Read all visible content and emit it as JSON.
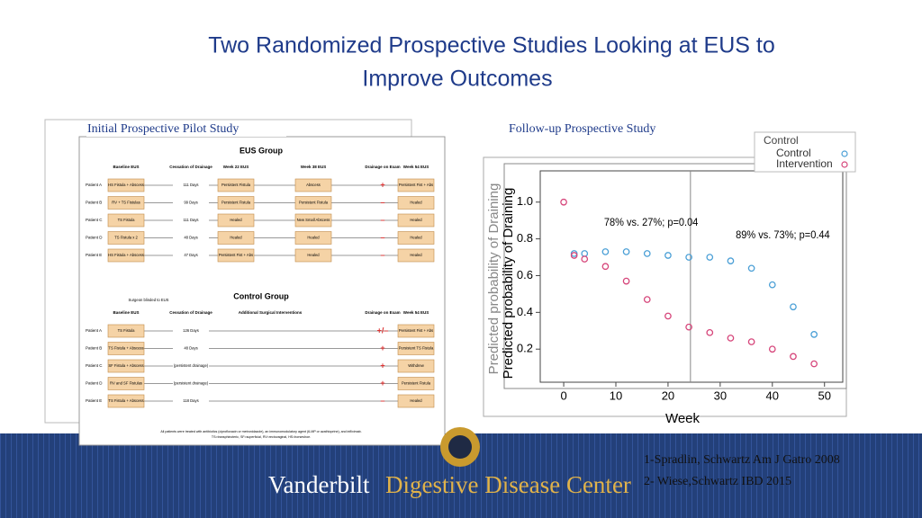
{
  "slide": {
    "title_line1": "Two Randomized Prospective Studies Looking at EUS to",
    "title_line2": "Improve Outcomes",
    "left_caption": "Initial Prospective Pilot Study",
    "right_caption": "Follow-up Prospective Study",
    "eus_group": {
      "title": "EUS Group",
      "headers": [
        "Baseline EUS",
        "Cessation of Drainage",
        "Week 22 EUS",
        "Week 38 EUS",
        "Drainage on Exam",
        "Week 54 EUS"
      ],
      "rows": [
        {
          "patient": "Patient A",
          "cells": [
            "HS Fistula + Abscess",
            "111 Days",
            "Persistent Fistula",
            "Abscess",
            "+",
            "Persistent Fist + Abs"
          ]
        },
        {
          "patient": "Patient B",
          "cells": [
            "RV + TS Fistulas",
            "99 Days",
            "Persistent Fistula",
            "Persistent Fistula",
            "–",
            "Healed"
          ]
        },
        {
          "patient": "Patient C",
          "cells": [
            "TS Fistula",
            "111 Days",
            "Healed",
            "New Small Abscess",
            "–",
            "Healed"
          ]
        },
        {
          "patient": "Patient D",
          "cells": [
            "TS Fistula x 2",
            "48 Days",
            "Healed",
            "Healed",
            "–",
            "Healed"
          ]
        },
        {
          "patient": "Patient E",
          "cells": [
            "HS Fistula + Abscess",
            "47 Days",
            "Persistent Fist + Abs",
            "Healed",
            "–",
            "Healed"
          ]
        }
      ]
    },
    "control_group": {
      "title": "Control Group",
      "note": "Surgeon blinded to EUS",
      "headers": [
        "Baseline EUS",
        "Cessation of Drainage",
        "Additional Surgical Interventions",
        "Drainage on Exam",
        "Week 54 EUS"
      ],
      "rows": [
        {
          "patient": "Patient A",
          "cells": [
            "TS Fistula",
            "126 Days",
            null,
            "+/–",
            "Persistent Fist + Abs"
          ]
        },
        {
          "patient": "Patient B",
          "cells": [
            "TS Fistula + Abscess",
            "48 Days",
            null,
            "+",
            "Persistent TS Fistula"
          ]
        },
        {
          "patient": "Patient C",
          "cells": [
            "SF Fistula + Abscess",
            "(persistent drainage)",
            null,
            "+",
            "Withdrew"
          ]
        },
        {
          "patient": "Patient D",
          "cells": [
            "RV and SF Fistulas",
            "(persistent drainage)",
            null,
            "+",
            "Persistent Fistula"
          ]
        },
        {
          "patient": "Patient E",
          "cells": [
            "TS Fistula + Abscess",
            "118 Days",
            null,
            "–",
            "Healed"
          ]
        }
      ],
      "footnote1": "All patients were treated with antibiotics (ciprofloxacin or metronidazole), an immunomodulatory agent (6-MP or azathioprine), and infliximab.",
      "footnote2": "TS=transphincteric, SF=superficial, RV=rectovaginal, HS=horseshoe."
    },
    "chart": {
      "type": "scatter",
      "x_label": "Week",
      "y_label": "Predicted probability of Draining",
      "annotations": [
        "78% vs. 27%; p=0.04",
        "89% vs. 73%; p=0.44"
      ],
      "divider_x": 24.3,
      "xlim": [
        -4.5,
        53.5
      ],
      "ylim": [
        0.02,
        1.17
      ],
      "xticks": [
        0,
        10,
        20,
        30,
        40,
        50
      ],
      "yticks": [
        {
          "value": 0.2,
          "label": "0.2"
        },
        {
          "value": 0.4,
          "label": "0.4"
        },
        {
          "value": 0.6,
          "label": "0.6"
        },
        {
          "value": 0.8,
          "label": "0.8"
        },
        {
          "value": 1.0,
          "label": "1.0"
        }
      ],
      "legend_title": "Control",
      "series": [
        {
          "name": "Control",
          "color": "#4a9fd6",
          "x": [
            2,
            4,
            8,
            12,
            16,
            20,
            24,
            28,
            32,
            36,
            40,
            44,
            48
          ],
          "values": [
            0.72,
            0.72,
            0.73,
            0.73,
            0.72,
            0.71,
            0.7,
            0.7,
            0.68,
            0.64,
            0.55,
            0.43,
            0.28
          ]
        },
        {
          "name": "Intervention",
          "color": "#d6457a",
          "x": [
            0,
            2,
            4,
            8,
            12,
            16,
            20,
            24,
            28,
            32,
            36,
            40,
            44,
            48
          ],
          "values": [
            1.0,
            0.71,
            0.69,
            0.65,
            0.57,
            0.47,
            0.38,
            0.32,
            0.29,
            0.26,
            0.24,
            0.2,
            0.16,
            0.12
          ]
        }
      ]
    },
    "references": [
      "1-Spradlin, Schwartz Am J Gatro 2008",
      "2- Wiese,Schwartz IBD 2015"
    ],
    "logo": {
      "word1": "Vanderbilt",
      "word2": "Digestive Disease Center"
    }
  }
}
